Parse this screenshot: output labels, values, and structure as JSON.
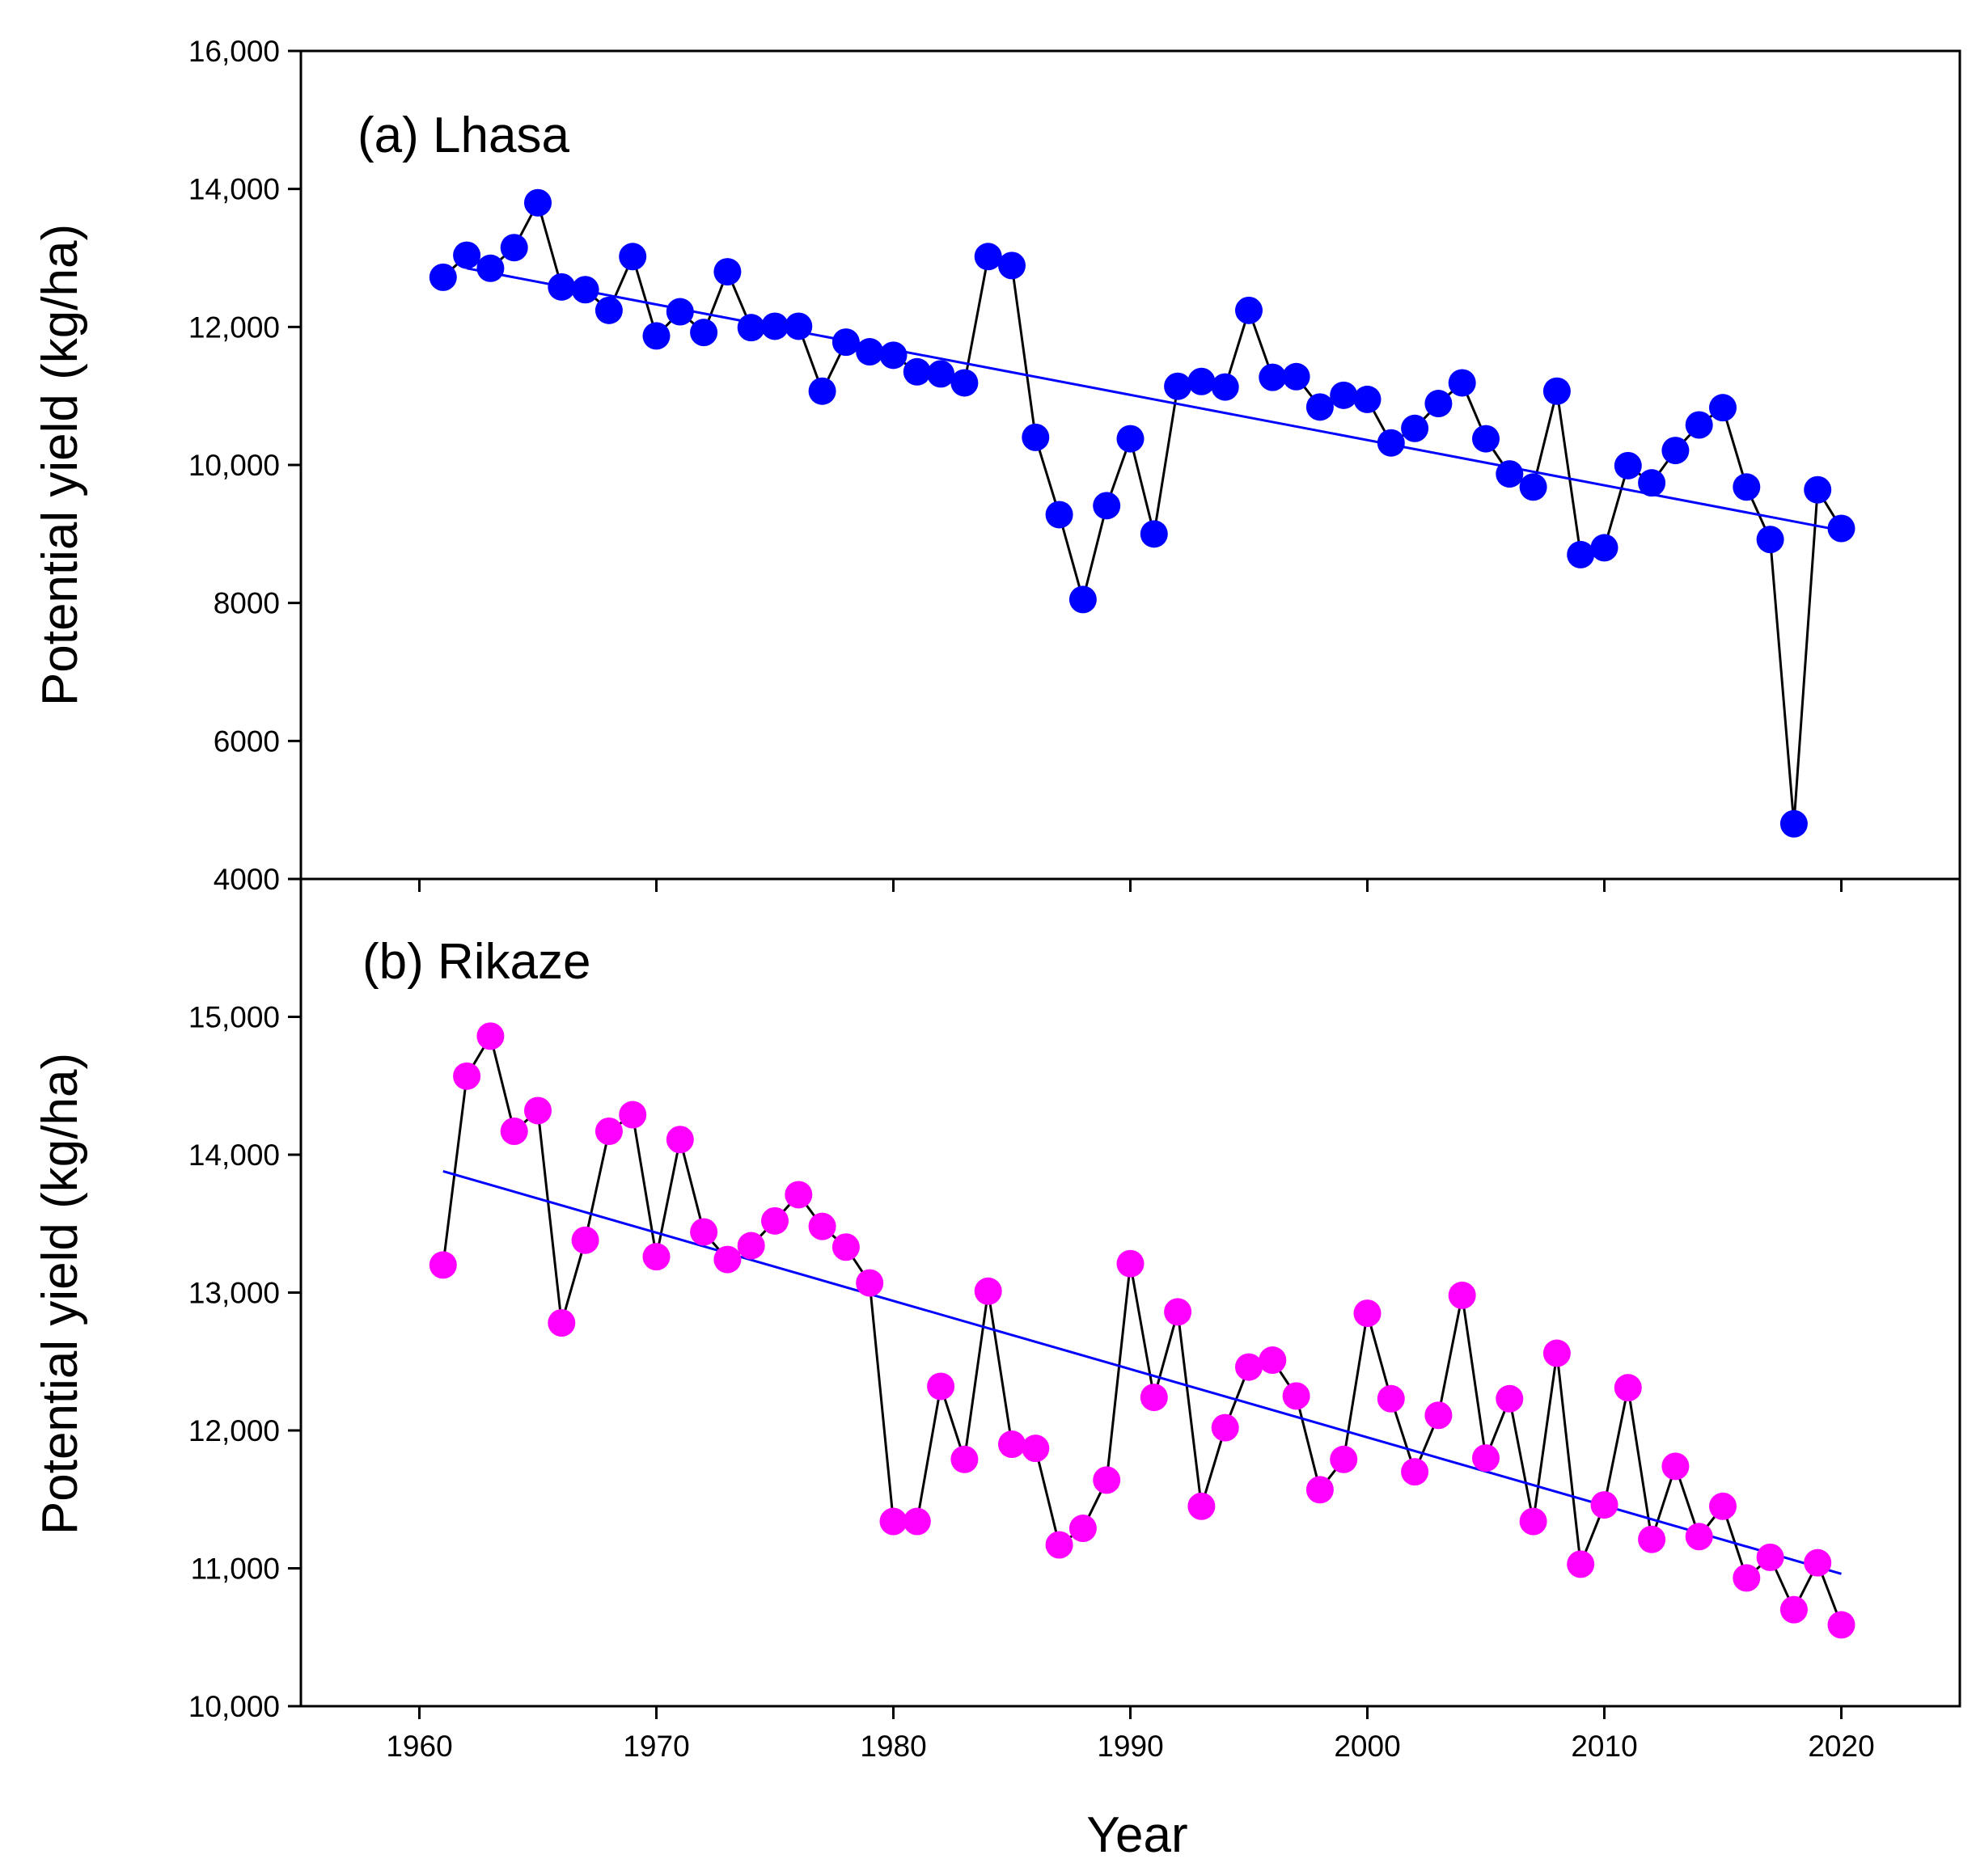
{
  "chart_data": [
    {
      "type": "line",
      "panel_label": "(a) Lhasa",
      "ylabel": "Potential yield (kg/ha)",
      "xlim": [
        1955,
        2025
      ],
      "ylim": [
        4000,
        16000
      ],
      "yticks": [
        4000,
        6000,
        8000,
        10000,
        12000,
        14000,
        16000
      ],
      "ytick_labels": [
        "4000",
        "6000",
        "8000",
        "10,000",
        "12,000",
        "14,000",
        "16,000"
      ],
      "marker_color": "#0000ff",
      "line_color": "#000000",
      "trend_color": "#0000ff",
      "trend": {
        "x": [
          1962,
          2020
        ],
        "y": [
          12850,
          9050
        ]
      },
      "x": [
        1961,
        1962,
        1963,
        1964,
        1965,
        1966,
        1967,
        1968,
        1969,
        1970,
        1971,
        1972,
        1973,
        1974,
        1975,
        1976,
        1977,
        1978,
        1979,
        1980,
        1981,
        1982,
        1983,
        1984,
        1985,
        1986,
        1987,
        1988,
        1989,
        1990,
        1991,
        1992,
        1993,
        1994,
        1995,
        1996,
        1997,
        1998,
        1999,
        2000,
        2001,
        2002,
        2003,
        2004,
        2005,
        2006,
        2007,
        2008,
        2009,
        2010,
        2011,
        2012,
        2013,
        2014,
        2015,
        2016,
        2017,
        2018,
        2019,
        2020
      ],
      "y": [
        12720,
        13040,
        12850,
        13150,
        13800,
        12580,
        12540,
        12240,
        13020,
        11870,
        12220,
        11920,
        12800,
        11990,
        12010,
        12010,
        11070,
        11780,
        11640,
        11590,
        11350,
        11320,
        11190,
        13020,
        12890,
        10400,
        9280,
        8050,
        9410,
        10380,
        9000,
        11140,
        11210,
        11130,
        12240,
        11270,
        11280,
        10840,
        11010,
        10950,
        10320,
        10530,
        10890,
        11190,
        10380,
        9870,
        9680,
        11070,
        8700,
        8800,
        9990,
        9740,
        10210,
        10580,
        10830,
        9680,
        8920,
        4800,
        9640,
        9080
      ]
    },
    {
      "type": "line",
      "panel_label": "(b) Rikaze",
      "ylabel": "Potential yield (kg/ha)",
      "xlabel": "Year",
      "xlim": [
        1955,
        2025
      ],
      "ylim": [
        10000,
        16000
      ],
      "yticks": [
        10000,
        11000,
        12000,
        13000,
        14000,
        15000
      ],
      "ytick_labels": [
        "10,000",
        "11,000",
        "12,000",
        "13,000",
        "14,000",
        "15,000"
      ],
      "xticks": [
        1960,
        1970,
        1980,
        1990,
        2000,
        2010,
        2020
      ],
      "xtick_labels": [
        "1960",
        "1970",
        "1980",
        "1990",
        "2000",
        "2010",
        "2020"
      ],
      "marker_color": "#ff00ff",
      "line_color": "#000000",
      "trend_color": "#0000ff",
      "trend": {
        "x": [
          1961,
          2020
        ],
        "y": [
          13880,
          10960
        ]
      },
      "x": [
        1961,
        1962,
        1963,
        1964,
        1965,
        1966,
        1967,
        1968,
        1969,
        1970,
        1971,
        1972,
        1973,
        1974,
        1975,
        1976,
        1977,
        1978,
        1979,
        1980,
        1981,
        1982,
        1983,
        1984,
        1985,
        1986,
        1987,
        1988,
        1989,
        1990,
        1991,
        1992,
        1993,
        1994,
        1995,
        1996,
        1997,
        1998,
        1999,
        2000,
        2001,
        2002,
        2003,
        2004,
        2005,
        2006,
        2007,
        2008,
        2009,
        2010,
        2011,
        2012,
        2013,
        2014,
        2015,
        2016,
        2017,
        2018,
        2019,
        2020
      ],
      "y": [
        13200,
        14570,
        14860,
        14170,
        14320,
        12780,
        13380,
        14170,
        14290,
        13260,
        14110,
        13440,
        13240,
        13340,
        13520,
        13710,
        13480,
        13330,
        13070,
        11340,
        11340,
        12320,
        11790,
        13010,
        11900,
        11870,
        11170,
        11290,
        11640,
        13210,
        12240,
        12860,
        11450,
        12020,
        12460,
        12510,
        12250,
        11570,
        11790,
        12850,
        12230,
        11700,
        12110,
        12980,
        11800,
        12230,
        11340,
        12560,
        11030,
        11460,
        12310,
        11210,
        11740,
        11230,
        11450,
        10930,
        11080,
        10700,
        11040,
        10590
      ]
    }
  ]
}
